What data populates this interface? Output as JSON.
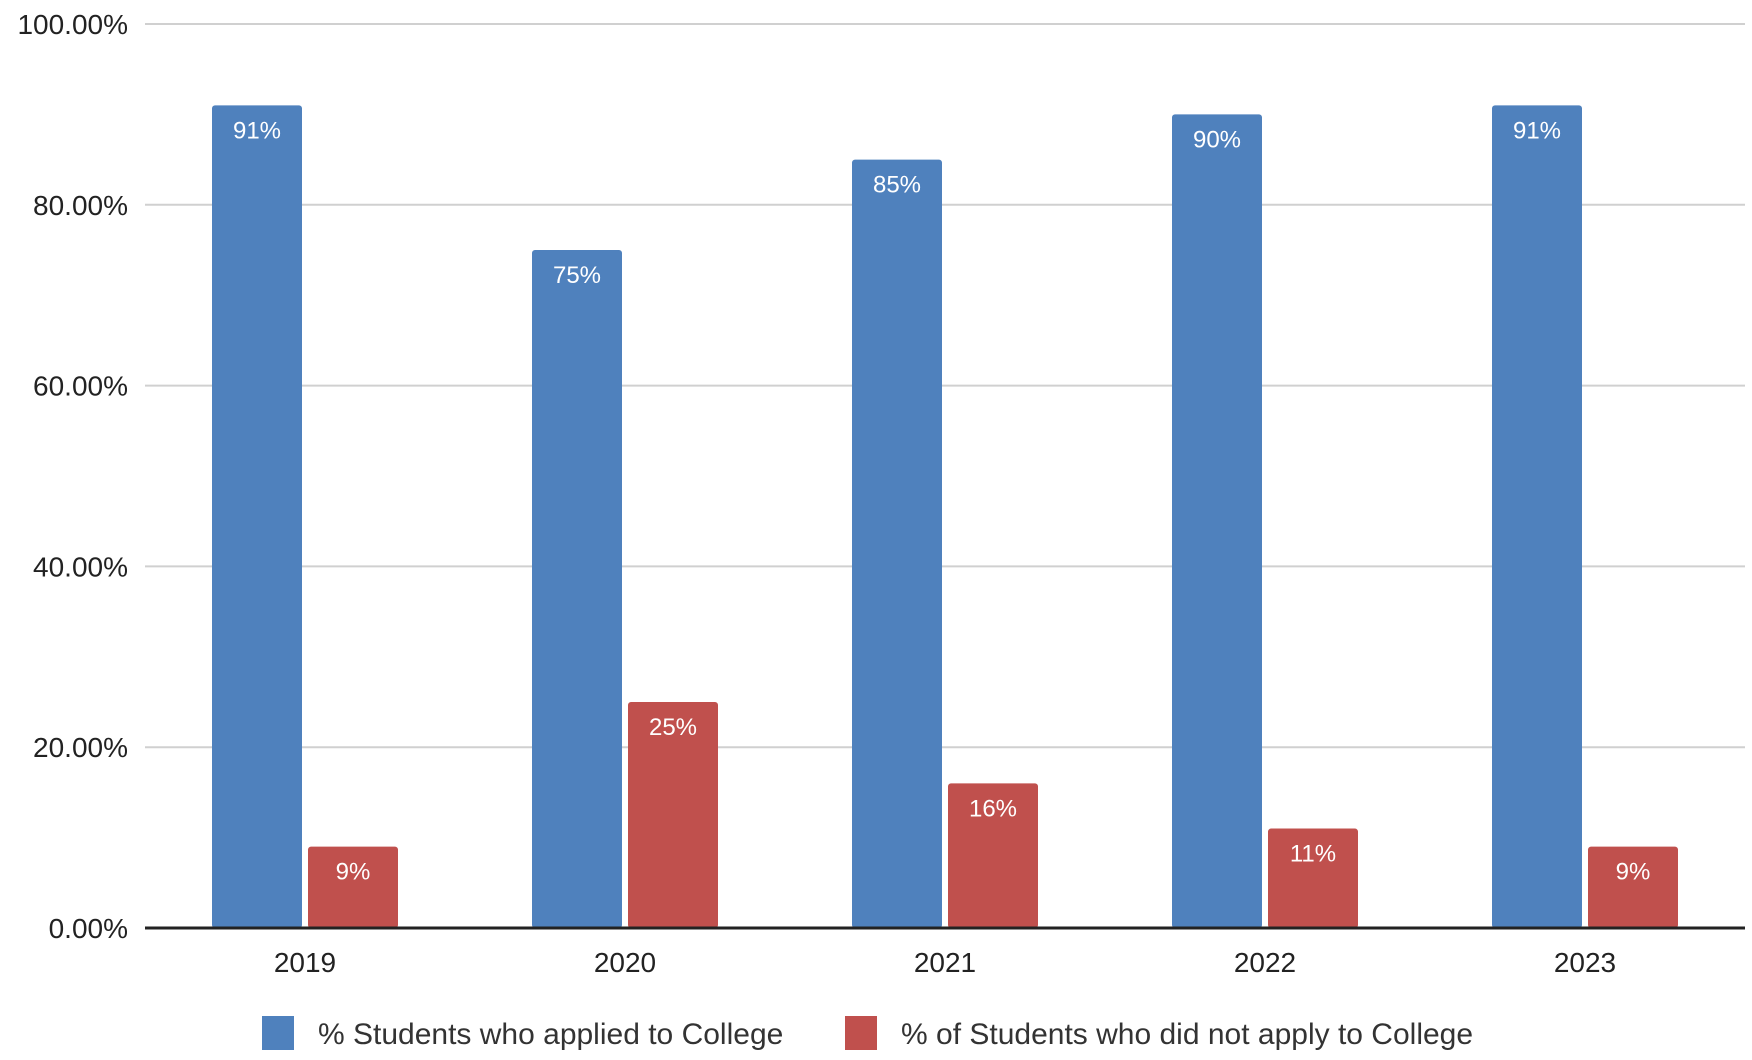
{
  "chart_data": {
    "type": "bar",
    "title": "",
    "xlabel": "",
    "ylabel": "",
    "categories": [
      "2019",
      "2020",
      "2021",
      "2022",
      "2023"
    ],
    "series": [
      {
        "name": "% Students who applied to College",
        "color": "#4F81BD",
        "values": [
          91,
          75,
          85,
          90,
          91
        ],
        "labels": [
          "91%",
          "75%",
          "85%",
          "90%",
          "91%"
        ]
      },
      {
        "name": "% of Students who did not apply to College",
        "color": "#C0504D",
        "values": [
          9,
          25,
          16,
          11,
          9
        ],
        "labels": [
          "9%",
          "25%",
          "16%",
          "11%",
          "9%"
        ]
      }
    ],
    "ylim": [
      0,
      100
    ],
    "yticks": [
      0,
      20,
      40,
      60,
      80,
      100
    ],
    "ytick_labels": [
      "0.00%",
      "20.00%",
      "40.00%",
      "60.00%",
      "80.00%",
      "100.00%"
    ],
    "grid": true,
    "legend": "bottom"
  }
}
